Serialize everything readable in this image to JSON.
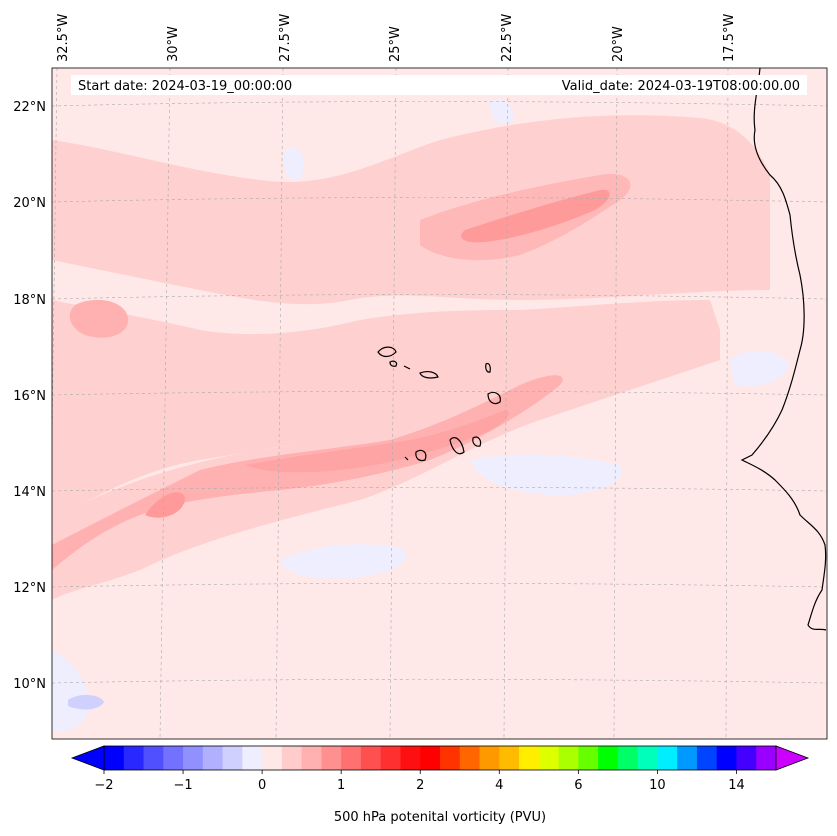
{
  "header": {
    "start_date": "Start date: 2024-03-19_00:00:00",
    "valid_date": "Valid_date: 2024-03-19T08:00:00.00"
  },
  "map": {
    "lon_labels": [
      "32.5°W",
      "30°W",
      "27.5°W",
      "25°W",
      "22.5°W",
      "20°W",
      "17.5°W"
    ],
    "lat_labels": [
      "22°N",
      "20°N",
      "18°N",
      "16°N",
      "14°N",
      "12°N",
      "10°N"
    ],
    "gridlines": true
  },
  "colorbar": {
    "label": "500 hPa potenital vorticity (PVU)",
    "tick_labels": [
      "−2",
      "−1",
      "0",
      "1",
      "2",
      "4",
      "6",
      "10",
      "14"
    ],
    "colors": [
      "#0000ff",
      "#2828ff",
      "#5050ff",
      "#7272ff",
      "#9090ff",
      "#b0b0ff",
      "#d0d0ff",
      "#eeeeff",
      "#ffe8e8",
      "#ffcccc",
      "#ffb0b0",
      "#ff9090",
      "#ff7070",
      "#ff5050",
      "#ff3030",
      "#ff1010",
      "#ff0000",
      "#ff3300",
      "#ff6600",
      "#ff9900",
      "#ffbb00",
      "#ffee00",
      "#ddff00",
      "#aaff00",
      "#66ff00",
      "#00ff00",
      "#00ff66",
      "#00ffbb",
      "#00eeff",
      "#0099ff",
      "#0044ff",
      "#0000ff",
      "#4400ff",
      "#9900ff"
    ],
    "extend_max_color": "#cc00ff"
  }
}
